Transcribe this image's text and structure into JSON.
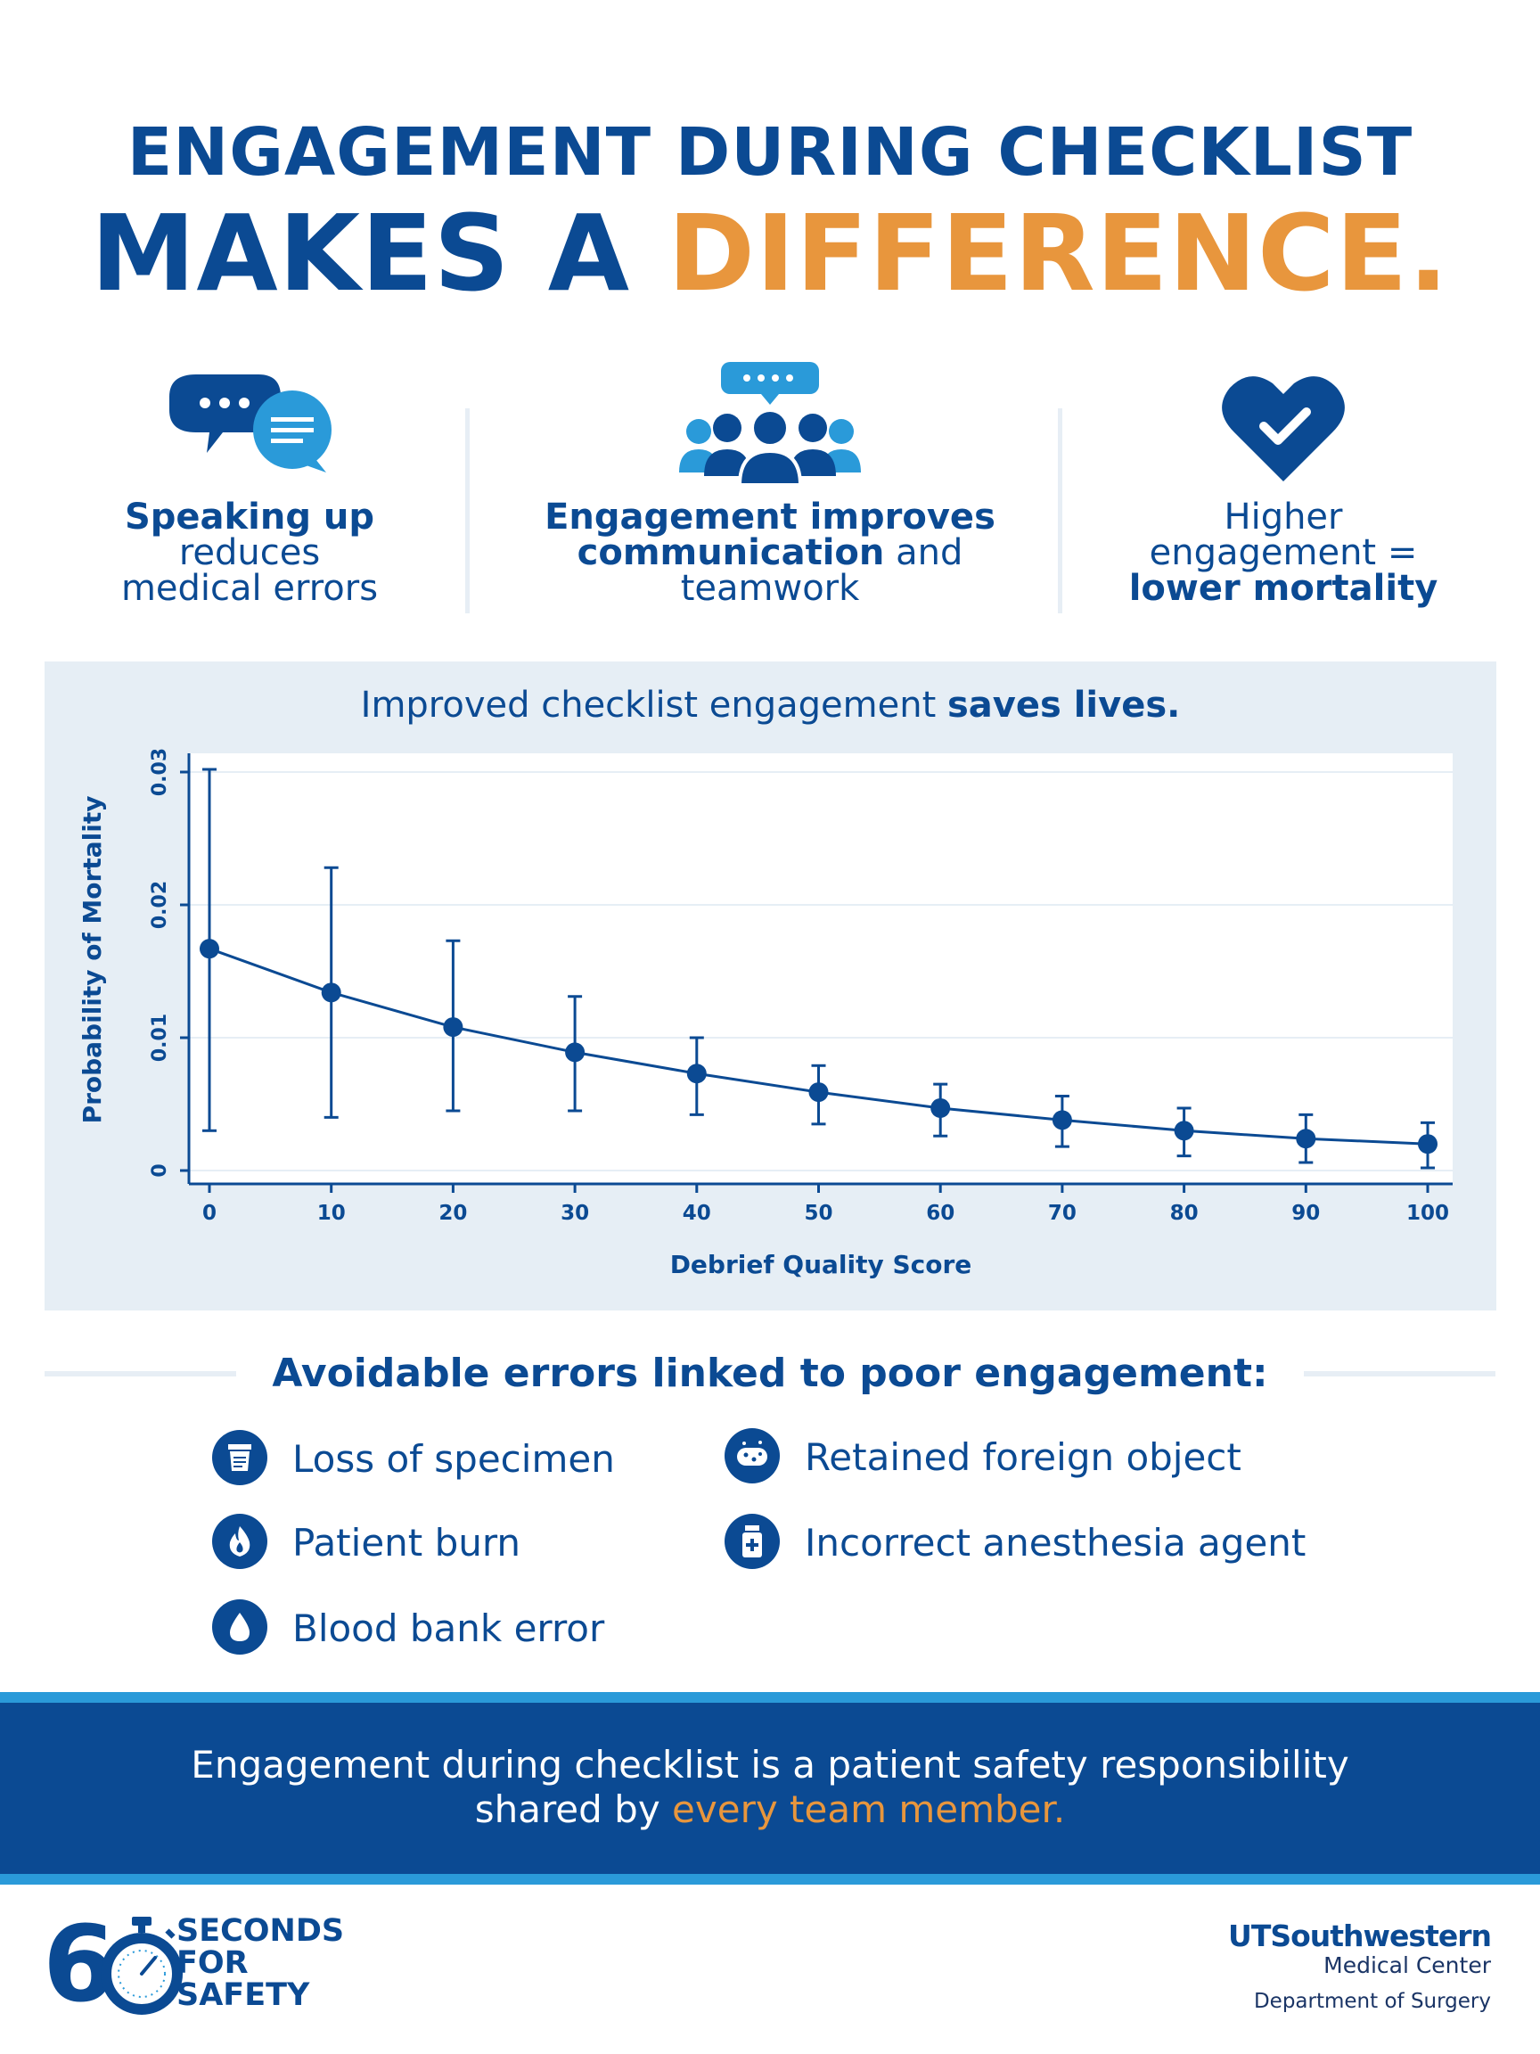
{
  "header": {
    "line1": "ENGAGEMENT DURING CHECKLIST",
    "line2_part1": "MAKES A ",
    "line2_accent": "DIFFERENCE."
  },
  "features": [
    {
      "icon": "speech-bubbles-icon",
      "bold": "Speaking up",
      "line2": "reduces",
      "line3": "medical errors"
    },
    {
      "icon": "team-chat-icon",
      "bold1": "Engagement improves",
      "bold2": "communication",
      "rest2": " and",
      "line3": "teamwork"
    },
    {
      "icon": "heart-check-icon",
      "line1": "Higher",
      "line2": "engagement =",
      "bold": "lower mortality"
    }
  ],
  "chart_caption": {
    "normal": "Improved checklist engagement ",
    "bold": "saves lives."
  },
  "chart_data": {
    "type": "line",
    "title": "",
    "xlabel": "Debrief Quality Score",
    "ylabel": "Probability of Mortality",
    "x": [
      0,
      10,
      20,
      30,
      40,
      50,
      60,
      70,
      80,
      90,
      100
    ],
    "series": [
      {
        "values": [
          0.0167,
          0.0134,
          0.0108,
          0.0089,
          0.0073,
          0.0059,
          0.0047,
          0.0038,
          0.003,
          0.0024,
          0.002
        ],
        "lower": [
          0.003,
          0.004,
          0.0045,
          0.0045,
          0.0042,
          0.0035,
          0.0026,
          0.0018,
          0.0011,
          0.0006,
          0.0002
        ],
        "upper": [
          0.0302,
          0.0228,
          0.0173,
          0.0131,
          0.01,
          0.0079,
          0.0065,
          0.0056,
          0.0047,
          0.0042,
          0.0036
        ]
      }
    ],
    "xticks": [
      "0",
      "10",
      "20",
      "30",
      "40",
      "50",
      "60",
      "70",
      "80",
      "90",
      "100"
    ],
    "yticks": [
      "0",
      "0.01",
      "0.02",
      "0.03"
    ],
    "ytick_values": [
      0,
      0.01,
      0.02,
      0.03
    ],
    "xlim": [
      0,
      100
    ],
    "ylim": [
      0,
      0.03
    ],
    "grid": true,
    "colors": {
      "line": "#0b4a93",
      "grid": "#e6eef5"
    }
  },
  "errors_title": "Avoidable errors linked to poor engagement:",
  "errors": [
    {
      "icon": "specimen-cup-icon",
      "label": "Loss of specimen"
    },
    {
      "icon": "flame-icon",
      "label": "Patient burn"
    },
    {
      "icon": "blood-drop-icon",
      "label": "Blood bank error"
    },
    {
      "icon": "sponge-icon",
      "label": "Retained foreign object"
    },
    {
      "icon": "medicine-bottle-icon",
      "label": "Incorrect anesthesia agent"
    }
  ],
  "banner": {
    "line1": "Engagement during checklist is a patient safety responsibility",
    "line2_part1": "shared by ",
    "line2_accent": "every team member."
  },
  "footer": {
    "logo_digit": "6",
    "logo_line1": "SECONDS",
    "logo_line2": "FOR",
    "logo_line3": "SAFETY",
    "org_name": "UTSouthwestern",
    "org_sub": "Medical Center",
    "org_dept": "Department of Surgery"
  },
  "colors": {
    "navy": "#0b4a93",
    "orange": "#e8963d",
    "light_blue": "#2a9ad9",
    "panel": "#e6eef5"
  }
}
